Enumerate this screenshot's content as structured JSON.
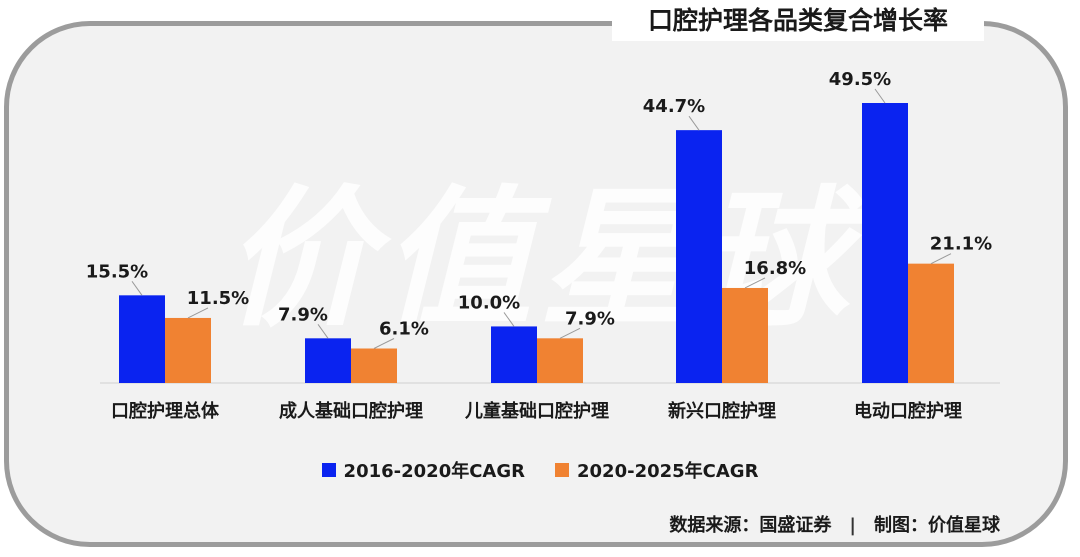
{
  "title": "口腔护理各品类复合增长率",
  "watermark": "价值星球",
  "colors": {
    "background": "#f2f2f2",
    "frame": "#9c9c9c",
    "series1": "#0a23f0",
    "series2": "#f08232"
  },
  "chart_data": {
    "type": "bar",
    "title": "口腔护理各品类复合增长率",
    "categories": [
      "口腔护理总体",
      "成人基础口腔护理",
      "儿童基础口腔护理",
      "新兴口腔护理",
      "电动口腔护理"
    ],
    "series": [
      {
        "name": "2016-2020年CAGR",
        "values": [
          15.5,
          7.9,
          10.0,
          44.7,
          49.5
        ],
        "labels": [
          "15.5%",
          "7.9%",
          "10.0%",
          "44.7%",
          "49.5%"
        ]
      },
      {
        "name": "2020-2025年CAGR",
        "values": [
          11.5,
          6.1,
          7.9,
          16.8,
          21.1
        ],
        "labels": [
          "11.5%",
          "6.1%",
          "7.9%",
          "16.8%",
          "21.1%"
        ]
      }
    ],
    "xlabel": "",
    "ylabel": "",
    "ylim": [
      0,
      50
    ],
    "grid": false,
    "legend_position": "bottom"
  },
  "footer": {
    "source": "数据来源：国盛证券",
    "separator": "|",
    "credit": "制图：价值星球"
  }
}
